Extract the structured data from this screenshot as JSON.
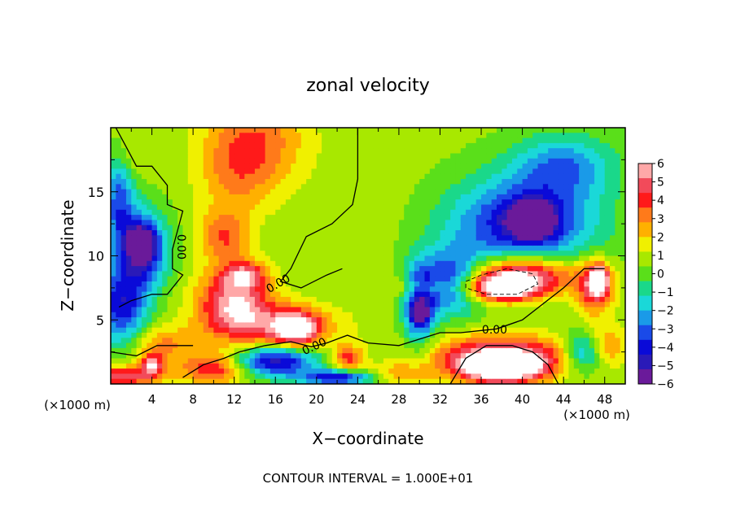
{
  "chart_data": {
    "type": "heatmap",
    "title": "zonal velocity",
    "xlabel": "X−coordinate",
    "ylabel": "Z−coordinate",
    "x_unit": "(×1000 m)",
    "x_unit_right": "(×1000 m)",
    "xlim": [
      0,
      50
    ],
    "ylim": [
      0,
      20
    ],
    "x_ticks": [
      4,
      8,
      12,
      16,
      20,
      24,
      28,
      32,
      36,
      40,
      44,
      48
    ],
    "x_tick_labels": [
      "4",
      "8",
      "12",
      "16",
      "20",
      "24",
      "28",
      "32",
      "36",
      "40",
      "44",
      "48"
    ],
    "y_ticks": [
      5,
      10,
      15
    ],
    "y_tick_labels": [
      "5",
      "10",
      "15"
    ],
    "colorbar": {
      "ticks": [
        6,
        5,
        4,
        3,
        2,
        1,
        0,
        -1,
        -2,
        -3,
        -4,
        -5,
        -6
      ],
      "tick_labels": [
        "6",
        "5",
        "4",
        "3",
        "2",
        "1",
        "0",
        "−1",
        "−2",
        "−3",
        "−4",
        "−5",
        "−6"
      ],
      "colors": [
        "#ffa8a8",
        "#f24a5a",
        "#ff1a1a",
        "#ff7a1a",
        "#ffb000",
        "#f0f000",
        "#a8e800",
        "#5adf1a",
        "#1ad88a",
        "#1ad8d8",
        "#1a9ae8",
        "#1a4ae8",
        "#0a0ad8",
        "#2a1ab8",
        "#6a1a9a"
      ],
      "range": [
        -6,
        6
      ]
    },
    "contour_labels": [
      {
        "text": "0.00",
        "x": 6.8,
        "y": 10.7,
        "rotation": 90
      },
      {
        "text": "0.00",
        "x": 16.3,
        "y": 7.8,
        "rotation": -30
      },
      {
        "text": "0.00",
        "x": 19.8,
        "y": 2.9,
        "rotation": -25
      },
      {
        "text": "0.00",
        "x": 37.3,
        "y": 4.2,
        "rotation": 0
      }
    ],
    "footnote": "CONTOUR INTERVAL = 1.000E+01",
    "blobs": [
      {
        "x": 14,
        "z": 19,
        "rx": 5,
        "rz": 4,
        "v": 3.5
      },
      {
        "x": 12,
        "z": 16,
        "rx": 3.5,
        "rz": 3,
        "v": 2
      },
      {
        "x": 11,
        "z": 11.5,
        "rx": 2.5,
        "rz": 2,
        "v": 3.5
      },
      {
        "x": 12,
        "z": 6.5,
        "rx": 3.5,
        "rz": 2.5,
        "v": 5.5
      },
      {
        "x": 16,
        "z": 4.5,
        "rx": 6,
        "rz": 1.8,
        "v": 4
      },
      {
        "x": 18,
        "z": 4.3,
        "rx": 2,
        "rz": 1.2,
        "v": 6
      },
      {
        "x": 5,
        "z": 3,
        "rx": 3,
        "rz": 1.5,
        "v": 3
      },
      {
        "x": 4,
        "z": 1.5,
        "rx": 1,
        "rz": 0.8,
        "v": 5
      },
      {
        "x": 1,
        "z": 0.6,
        "rx": 4,
        "rz": 0.8,
        "v": 5
      },
      {
        "x": 10,
        "z": 1.2,
        "rx": 3,
        "rz": 1.2,
        "v": 4.5
      },
      {
        "x": 16,
        "z": 1.8,
        "rx": 4,
        "rz": 1.2,
        "v": -5
      },
      {
        "x": 23,
        "z": 2,
        "rx": 1.5,
        "rz": 1,
        "v": 4
      },
      {
        "x": 22,
        "z": 0.5,
        "rx": 3.5,
        "rz": 0.6,
        "v": -4.5
      },
      {
        "x": 38,
        "z": 2.2,
        "rx": 7,
        "rz": 1.6,
        "v": 5.5
      },
      {
        "x": 38,
        "z": 1.2,
        "rx": 4,
        "rz": 1.2,
        "v": 7
      },
      {
        "x": 47,
        "z": 7.5,
        "rx": 1.8,
        "rz": 2,
        "v": 5
      },
      {
        "x": 47.5,
        "z": 8.2,
        "rx": 0.8,
        "rz": 1,
        "v": 6.5
      },
      {
        "x": 48,
        "z": 3,
        "rx": 2,
        "rz": 1.5,
        "v": 3
      },
      {
        "x": 30,
        "z": 7.5,
        "rx": 3,
        "rz": 0.7,
        "v": 2.5
      },
      {
        "x": 3,
        "z": 10.5,
        "rx": 2.5,
        "rz": 3,
        "v": -5
      },
      {
        "x": 3,
        "z": 11,
        "rx": 1,
        "rz": 1,
        "v": -6.5
      },
      {
        "x": 1,
        "z": 6,
        "rx": 2.5,
        "rz": 3,
        "v": -4
      },
      {
        "x": 0.8,
        "z": 14.5,
        "rx": 1.5,
        "rz": 3.5,
        "v": -3
      },
      {
        "x": 40,
        "z": 12.5,
        "rx": 7,
        "rz": 3.5,
        "v": -4.5
      },
      {
        "x": 41,
        "z": 12.8,
        "rx": 2,
        "rz": 1.3,
        "v": -6
      },
      {
        "x": 41.5,
        "z": 12.7,
        "rx": 0.6,
        "rz": 0.5,
        "v": -7
      },
      {
        "x": 40,
        "z": 8.5,
        "rx": 5,
        "rz": 1.5,
        "v": 6.5
      },
      {
        "x": 38,
        "z": 7.5,
        "rx": 3.5,
        "rz": 1,
        "v": 7
      },
      {
        "x": 33,
        "z": 8,
        "rx": 3,
        "rz": 2.5,
        "v": -4
      },
      {
        "x": 30,
        "z": 6,
        "rx": 1.5,
        "rz": 3,
        "v": -4.5
      },
      {
        "x": 30,
        "z": 5.5,
        "rx": 0.6,
        "rz": 0.5,
        "v": -6.5
      },
      {
        "x": 44,
        "z": 17,
        "rx": 5,
        "rz": 2.5,
        "v": -2.5
      },
      {
        "x": 26,
        "z": 15,
        "rx": 4,
        "rz": 4,
        "v": 0.8
      },
      {
        "x": 2,
        "z": 18,
        "rx": 2,
        "rz": 2,
        "v": 1.5
      },
      {
        "x": 46,
        "z": 2.5,
        "rx": 2,
        "rz": 1.5,
        "v": -3.5
      },
      {
        "x": 28,
        "z": 0.8,
        "rx": 3,
        "rz": 0.8,
        "v": 2.5
      },
      {
        "x": 13,
        "z": 8.5,
        "rx": 2,
        "rz": 1,
        "v": 4
      }
    ],
    "zero_contours": [
      [
        [
          0.5,
          20
        ],
        [
          1.5,
          18.5
        ],
        [
          2.5,
          17
        ],
        [
          4,
          17
        ],
        [
          5.5,
          15.5
        ],
        [
          5.5,
          14
        ],
        [
          7,
          13.5
        ],
        [
          6.5,
          12
        ],
        [
          6,
          10.5
        ],
        [
          6,
          9
        ],
        [
          7,
          8.5
        ],
        [
          5.5,
          7
        ],
        [
          4,
          7
        ],
        [
          2,
          6.5
        ],
        [
          0.8,
          6
        ]
      ],
      [
        [
          24,
          20
        ],
        [
          24,
          16
        ],
        [
          23.5,
          14
        ],
        [
          21.5,
          12.5
        ],
        [
          19,
          11.5
        ],
        [
          17.5,
          9
        ],
        [
          16.5,
          8
        ],
        [
          18.5,
          7.5
        ],
        [
          21,
          8.5
        ],
        [
          22.5,
          9
        ]
      ],
      [
        [
          48,
          9
        ],
        [
          46,
          9
        ],
        [
          44,
          7.5
        ],
        [
          40,
          5
        ],
        [
          37.5,
          4.3
        ],
        [
          34,
          4
        ],
        [
          32,
          4
        ],
        [
          30,
          3.5
        ],
        [
          28,
          3
        ],
        [
          25,
          3.2
        ],
        [
          23,
          3.8
        ],
        [
          21,
          3.2
        ],
        [
          19.5,
          2.9
        ],
        [
          17.5,
          3.3
        ],
        [
          15,
          3
        ],
        [
          12.5,
          2.5
        ],
        [
          11,
          2
        ],
        [
          9,
          1.5
        ],
        [
          7,
          0.5
        ]
      ],
      [
        [
          0,
          2.5
        ],
        [
          2.5,
          2.2
        ],
        [
          4.5,
          3
        ],
        [
          6,
          3
        ],
        [
          8,
          3
        ]
      ],
      [
        [
          33,
          0
        ],
        [
          34.5,
          2
        ],
        [
          36.5,
          3
        ],
        [
          39,
          3
        ],
        [
          41,
          2.5
        ],
        [
          42.5,
          1.5
        ],
        [
          43.5,
          0
        ]
      ]
    ],
    "dashed_contours": [
      [
        [
          34.5,
          8
        ],
        [
          36,
          8.5
        ],
        [
          38.5,
          9
        ],
        [
          41,
          8.6
        ],
        [
          41.5,
          7.8
        ],
        [
          39.5,
          7
        ],
        [
          36.5,
          7
        ],
        [
          34.5,
          7.5
        ],
        [
          34.5,
          8
        ]
      ]
    ]
  }
}
